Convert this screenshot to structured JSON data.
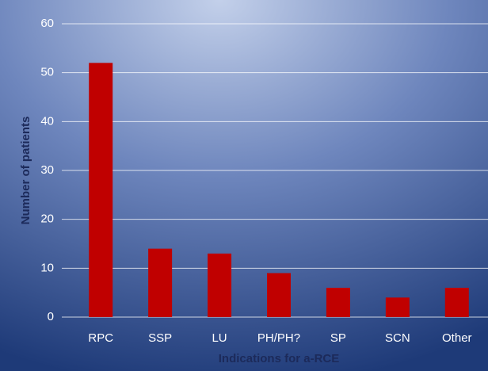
{
  "chart_data": {
    "type": "bar",
    "x_label": "Indications for a-RCE",
    "y_label": "Number of patients",
    "categories": [
      "RPC",
      "SSP",
      "LU",
      "PH/PH?",
      "SP",
      "SCN",
      "Other"
    ],
    "values": [
      52,
      14,
      13,
      9,
      6,
      4,
      6
    ],
    "color": "#c00000",
    "ylim": [
      0,
      60
    ],
    "yticks": [
      0,
      10,
      20,
      30,
      40,
      50,
      60
    ],
    "grid": true
  }
}
